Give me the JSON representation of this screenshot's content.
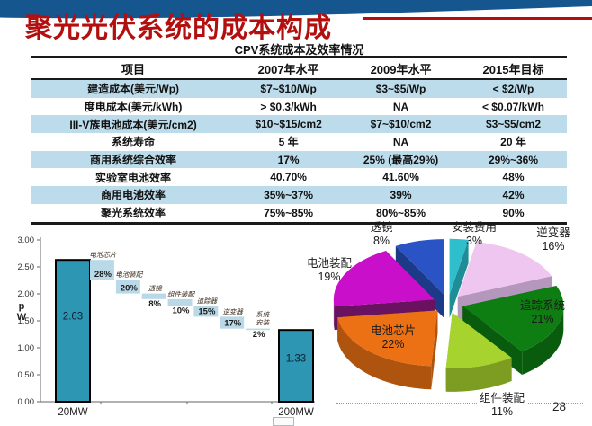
{
  "slide": {
    "title": "聚光光伏系统的成本构成",
    "subtitle": "CPV系统成本及效率情况",
    "page_number": "28",
    "colors": {
      "title_red": "#b40f0f",
      "top_band_blue": "#15568f",
      "table_highlight": "#bcdcec"
    }
  },
  "table": {
    "headers": [
      "项目",
      "2007年水平",
      "2009年水平",
      "2015年目标"
    ],
    "rows": [
      {
        "cells": [
          "建造成本(美元/Wp)",
          "$7~$10/Wp",
          "$3~$5/Wp",
          "< $2/Wp"
        ],
        "highlight": true
      },
      {
        "cells": [
          "度电成本(美元/kWh)",
          "> $0.3/kWh",
          "NA",
          "< $0.07/kWh"
        ],
        "highlight": false
      },
      {
        "cells": [
          "III-V族电池成本(美元/cm2)",
          "$10~$15/cm2",
          "$7~$10/cm2",
          "$3~$5/cm2"
        ],
        "highlight": true
      },
      {
        "cells": [
          "系统寿命",
          "5 年",
          "NA",
          "20 年"
        ],
        "highlight": false
      },
      {
        "cells": [
          "商用系统综合效率",
          "17%",
          "25% (最高29%)",
          "29%~36%"
        ],
        "highlight": true
      },
      {
        "cells": [
          "实验室电池效率",
          "40.70%",
          "41.60%",
          "48%"
        ],
        "highlight": false
      },
      {
        "cells": [
          "商用电池效率",
          "35%~37%",
          "39%",
          "42%"
        ],
        "highlight": true
      },
      {
        "cells": [
          "聚光系统效率",
          "75%~85%",
          "80%~85%",
          "90%"
        ],
        "highlight": false
      }
    ]
  },
  "chart_data": [
    {
      "type": "bar",
      "subtype": "waterfall",
      "title": "",
      "ylabel": "$/Wp",
      "ylabel_display": [
        "p",
        "W"
      ],
      "ylim": [
        0,
        3.0
      ],
      "ytick_step": 0.5,
      "categories": [
        "20MW",
        "200MW"
      ],
      "bars": [
        {
          "label": "20MW",
          "value": 2.63
        },
        {
          "label": "200MW",
          "value": 1.33
        }
      ],
      "steps": [
        {
          "label": "电池芯片",
          "pct": 28
        },
        {
          "label": "电池装配",
          "pct": 20
        },
        {
          "label": "透镜",
          "pct": 8
        },
        {
          "label": "组件装配",
          "pct": 10
        },
        {
          "label": "追踪器",
          "pct": 15
        },
        {
          "label": "逆变器",
          "pct": 17
        },
        {
          "label": "系统安装",
          "pct": 2
        }
      ],
      "bar_color": "#2d96b3",
      "step_color": "#b9d9e9",
      "grid": false,
      "legend_position": "none"
    },
    {
      "type": "pie",
      "style": "3d-exploded",
      "slices": [
        {
          "label": "安装费用",
          "pct": 3,
          "color": "#2fbecb",
          "side_color": "#1e8d98"
        },
        {
          "label": "逆变器",
          "pct": 16,
          "color": "#efc6ef",
          "side_color": "#b597bd"
        },
        {
          "label": "追踪系统",
          "pct": 21,
          "color": "#0e7d12",
          "side_color": "#095c0d"
        },
        {
          "label": "组件装配",
          "pct": 11,
          "color": "#a7d32f",
          "side_color": "#7c9d22"
        },
        {
          "label": "电池芯片",
          "pct": 22,
          "color": "#ec7114",
          "side_color": "#af540f"
        },
        {
          "label": "电池装配",
          "pct": 19,
          "color": "#c90fc9",
          "side_color": "#69125f"
        },
        {
          "label": "透镜",
          "pct": 8,
          "color": "#2a53c5",
          "side_color": "#1c3a88"
        }
      ],
      "grid": false,
      "legend_position": "none",
      "label_format": "name above percent"
    }
  ]
}
